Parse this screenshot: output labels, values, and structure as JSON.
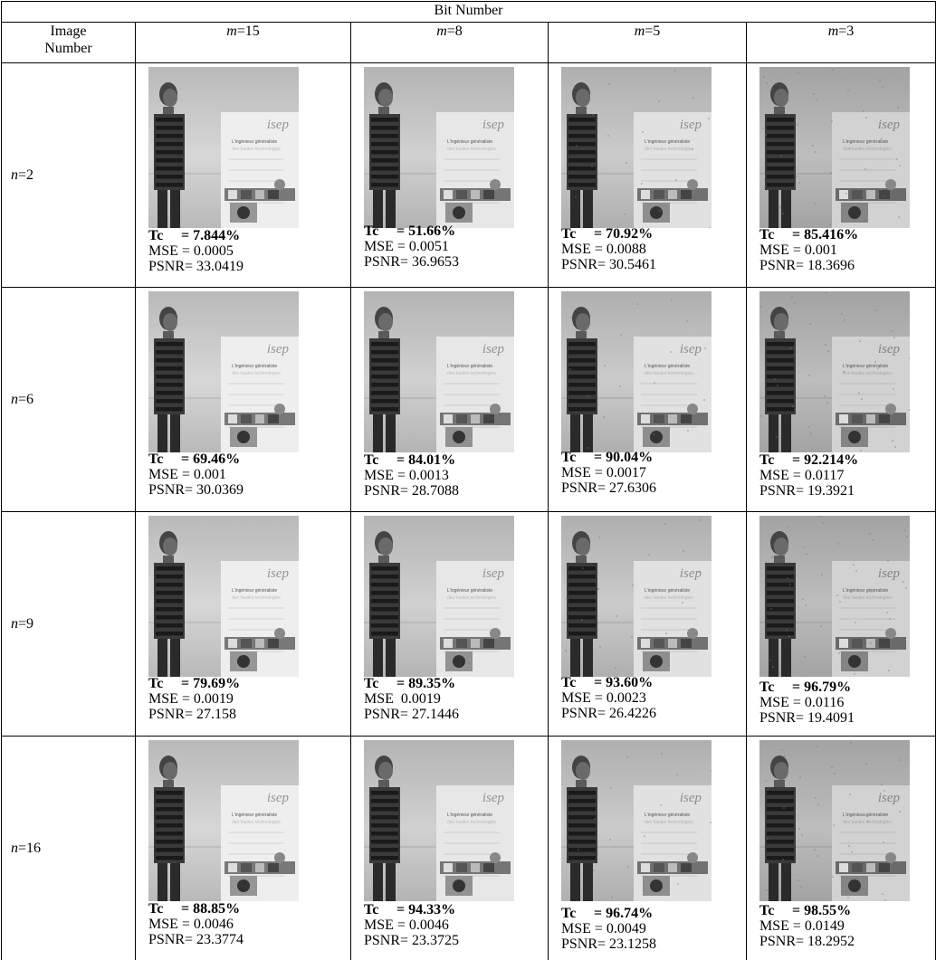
{
  "header": {
    "title": "Bit Number",
    "image_number_label": "Image\nNumber",
    "image_number_line1": "Image",
    "image_number_line2": "Number",
    "columns": [
      {
        "var": "m",
        "value": "=15"
      },
      {
        "var": "m",
        "value": "=8"
      },
      {
        "var": "m",
        "value": "=5"
      },
      {
        "var": "m",
        "value": "=3"
      }
    ]
  },
  "rows": [
    {
      "var": "n",
      "value": "=2",
      "cells": [
        {
          "tc_label": "Tc",
          "tc": "= 7.844%",
          "mse": "MSE = 0.0005",
          "psnr": "PSNR= 33.0419"
        },
        {
          "tc_label": "Tc",
          "tc": "= 51.66%",
          "mse": "MSE = 0.0051",
          "psnr": "PSNR= 36.9653"
        },
        {
          "tc_label": "Tc",
          "tc": "= 70.92%",
          "mse": "MSE = 0.0088",
          "psnr": "PSNR= 30.5461"
        },
        {
          "tc_label": "Tc",
          "tc": "= 85.416%",
          "mse": "MSE = 0.001",
          "psnr": "PSNR= 18.3696"
        }
      ]
    },
    {
      "var": "n",
      "value": "=6",
      "cells": [
        {
          "tc_label": "Tc",
          "tc": "= 69.46%",
          "mse": "MSE = 0.001",
          "psnr": "PSNR= 30.0369"
        },
        {
          "tc_label": "Tc",
          "tc": "= 84.01%",
          "mse": "MSE = 0.0013",
          "psnr": "PSNR= 28.7088"
        },
        {
          "tc_label": "Tc",
          "tc": "= 90.04%",
          "mse": "MSE = 0.0017",
          "psnr": "PSNR= 27.6306"
        },
        {
          "tc_label": "Tc",
          "tc": "= 92.214%",
          "mse": "MSE = 0.0117",
          "psnr": "PSNR= 19.3921"
        }
      ]
    },
    {
      "var": "n",
      "value": "=9",
      "cells": [
        {
          "tc_label": "Tc",
          "tc": "= 79.69%",
          "mse": "MSE = 0.0019",
          "psnr": "PSNR= 27.158"
        },
        {
          "tc_label": "Tc",
          "tc": "= 89.35%",
          "mse": "MSE  0.0019",
          "psnr": "PSNR= 27.1446"
        },
        {
          "tc_label": "Tc",
          "tc": "= 93.60%",
          "mse": "MSE = 0.0023",
          "psnr": "PSNR= 26.4226"
        },
        {
          "tc_label": "Tc",
          "tc": "= 96.79%",
          "mse": "MSE = 0.0116",
          "psnr": "PSNR= 19.4091"
        }
      ]
    },
    {
      "var": "n",
      "value": "=16",
      "cells": [
        {
          "tc_label": "Tc",
          "tc": "= 88.85%",
          "mse": "MSE = 0.0046",
          "psnr": "PSNR= 23.3774"
        },
        {
          "tc_label": "Tc",
          "tc": "= 94.33%",
          "mse": "MSE = 0.0046",
          "psnr": "PSNR= 23.3725"
        },
        {
          "tc_label": "Tc",
          "tc": "= 96.74%",
          "mse": "MSE = 0.0049",
          "psnr": "PSNR= 23.1258"
        },
        {
          "tc_label": "Tc",
          "tc": "= 98.55%",
          "mse": "MSE = 0.0149",
          "psnr": "PSNR= 18.2952"
        }
      ]
    }
  ],
  "poster": {
    "brand": "isep",
    "line1": "L'ingénieur généraliste",
    "line2": "des hautes technologies"
  }
}
